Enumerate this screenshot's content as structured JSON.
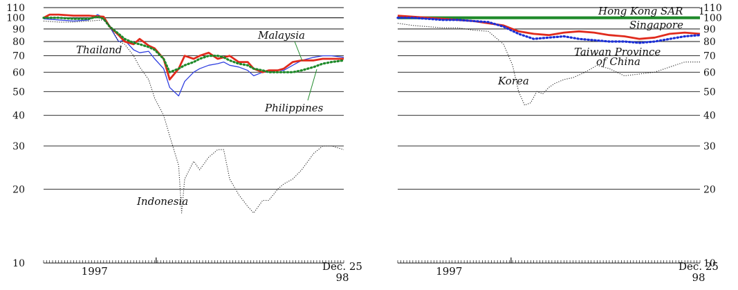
{
  "chart_data": [
    {
      "type": "line",
      "title": "",
      "scale": "log",
      "ylim": [
        10,
        110
      ],
      "yticks": [
        "110",
        "100",
        "90",
        "80",
        "70",
        "60",
        "50",
        "40",
        "30",
        "20",
        "10"
      ],
      "x_start_label": "1997",
      "x_end_label_line1": "Dec. 25",
      "x_end_label_line2": "98",
      "series": [
        {
          "name": "Thailand",
          "color": "#2f3fe0",
          "style": "solid-thin",
          "x": [
            0,
            5,
            10,
            15,
            18,
            20,
            22,
            25,
            27,
            30,
            32,
            35,
            37,
            40,
            42,
            45,
            47,
            50,
            52,
            55,
            58,
            60,
            62,
            65,
            68,
            70,
            73,
            75,
            78,
            80,
            83,
            86,
            90,
            93,
            96,
            100
          ],
          "values": [
            99,
            98,
            97,
            98,
            103,
            100,
            92,
            80,
            81,
            74,
            72,
            73,
            68,
            62,
            52,
            48,
            55,
            60,
            62,
            64,
            65,
            66,
            64,
            63,
            61,
            58,
            60,
            60,
            61,
            61,
            64,
            67,
            69,
            70,
            70,
            69
          ]
        },
        {
          "name": "Malaysia",
          "color": "#e02a1c",
          "style": "solid-thick",
          "x": [
            0,
            2,
            5,
            10,
            15,
            20,
            22,
            25,
            27,
            30,
            32,
            35,
            37,
            40,
            42,
            45,
            47,
            50,
            52,
            55,
            58,
            60,
            62,
            65,
            68,
            70,
            73,
            75,
            78,
            80,
            83,
            86,
            90,
            93,
            96,
            100
          ],
          "values": [
            100,
            103,
            103,
            102,
            102,
            101,
            92,
            85,
            80,
            78,
            82,
            77,
            75,
            68,
            56,
            62,
            70,
            68,
            70,
            72,
            68,
            69,
            70,
            66,
            66,
            62,
            60,
            61,
            61,
            62,
            66,
            67,
            67,
            68,
            68,
            68
          ]
        },
        {
          "name": "Philippines",
          "color": "#1f8a2a",
          "style": "dotted",
          "x": [
            0,
            5,
            10,
            15,
            18,
            20,
            22,
            25,
            27,
            30,
            32,
            35,
            37,
            40,
            42,
            45,
            47,
            50,
            52,
            55,
            58,
            60,
            62,
            65,
            68,
            70,
            73,
            75,
            78,
            80,
            83,
            86,
            90,
            93,
            96,
            100
          ],
          "values": [
            100,
            100,
            99,
            99,
            101,
            99,
            92,
            86,
            82,
            79,
            78,
            76,
            74,
            68,
            60,
            62,
            64,
            66,
            68,
            70,
            70,
            69,
            67,
            65,
            64,
            62,
            61,
            60,
            60,
            60,
            60,
            61,
            63,
            65,
            66,
            67
          ]
        },
        {
          "name": "Indonesia",
          "color": "#222222",
          "style": "fine-dotted",
          "x": [
            0,
            5,
            10,
            15,
            20,
            22,
            25,
            27,
            30,
            32,
            35,
            37,
            40,
            42,
            45,
            46,
            47,
            50,
            52,
            55,
            58,
            60,
            62,
            65,
            68,
            70,
            73,
            75,
            78,
            80,
            83,
            86,
            90,
            93,
            96,
            100
          ],
          "values": [
            97,
            96,
            96,
            97,
            98,
            93,
            80,
            78,
            70,
            63,
            56,
            47,
            40,
            33,
            25,
            16,
            22,
            26,
            24,
            27,
            29,
            29,
            22,
            19,
            17,
            16,
            18,
            18,
            20,
            21,
            22,
            24,
            28,
            30,
            30,
            29
          ]
        }
      ]
    },
    {
      "type": "line",
      "title": "",
      "scale": "log",
      "ylim": [
        10,
        110
      ],
      "yticks": [
        "110",
        "100",
        "90",
        "80",
        "70",
        "60",
        "50",
        "40",
        "30",
        "20",
        "10"
      ],
      "x_start_label": "1997",
      "x_end_label_line1": "Dec. 25",
      "x_end_label_line2": "98",
      "footnote_marker": "1",
      "series": [
        {
          "name": "Hong Kong SAR",
          "color": "#1f8a2a",
          "style": "solid-very-thick",
          "x": [
            0,
            100
          ],
          "values": [
            100,
            100
          ]
        },
        {
          "name": "Singapore",
          "color": "#e02a1c",
          "style": "solid-thick",
          "x": [
            0,
            5,
            10,
            15,
            20,
            25,
            30,
            35,
            40,
            45,
            50,
            55,
            60,
            65,
            70,
            75,
            80,
            85,
            90,
            95,
            100
          ],
          "values": [
            102,
            101,
            100,
            99,
            98,
            97,
            95,
            93,
            88,
            86,
            85,
            87,
            88,
            87,
            85,
            84,
            82,
            83,
            86,
            87,
            86
          ]
        },
        {
          "name": "Taiwan Province\nof China",
          "color": "#1b2fd6",
          "style": "dotted",
          "x": [
            0,
            5,
            10,
            15,
            20,
            25,
            30,
            35,
            40,
            45,
            50,
            55,
            60,
            65,
            70,
            75,
            80,
            85,
            90,
            95,
            100
          ],
          "values": [
            100,
            100,
            99,
            98,
            98,
            97,
            96,
            92,
            86,
            82,
            83,
            84,
            82,
            81,
            80,
            80,
            79,
            80,
            82,
            84,
            85
          ]
        },
        {
          "name": "Korea",
          "color": "#222222",
          "style": "fine-dotted",
          "x": [
            0,
            5,
            10,
            15,
            20,
            25,
            30,
            35,
            38,
            40,
            42,
            44,
            46,
            48,
            50,
            52,
            55,
            58,
            62,
            66,
            70,
            75,
            80,
            85,
            90,
            95,
            100
          ],
          "values": [
            95,
            93,
            92,
            91,
            91,
            89,
            88,
            78,
            64,
            50,
            44,
            45,
            50,
            49,
            52,
            54,
            56,
            57,
            60,
            64,
            62,
            58,
            59,
            60,
            63,
            66,
            66
          ]
        }
      ]
    }
  ],
  "labels": {
    "left": [
      {
        "series": "Thailand",
        "text": "Thailand"
      },
      {
        "series": "Malaysia",
        "text": "Malaysia"
      },
      {
        "series": "Philippines",
        "text": "Philippines"
      },
      {
        "series": "Indonesia",
        "text": "Indonesia"
      }
    ],
    "right": [
      {
        "series": "Hong Kong SAR",
        "text": "Hong Kong SAR"
      },
      {
        "series": "Singapore",
        "text": "Singapore"
      },
      {
        "series": "Taiwan Province of China",
        "text_line1": "Taiwan Province",
        "text_line2": "of China"
      },
      {
        "series": "Korea",
        "text": "Korea"
      }
    ]
  }
}
